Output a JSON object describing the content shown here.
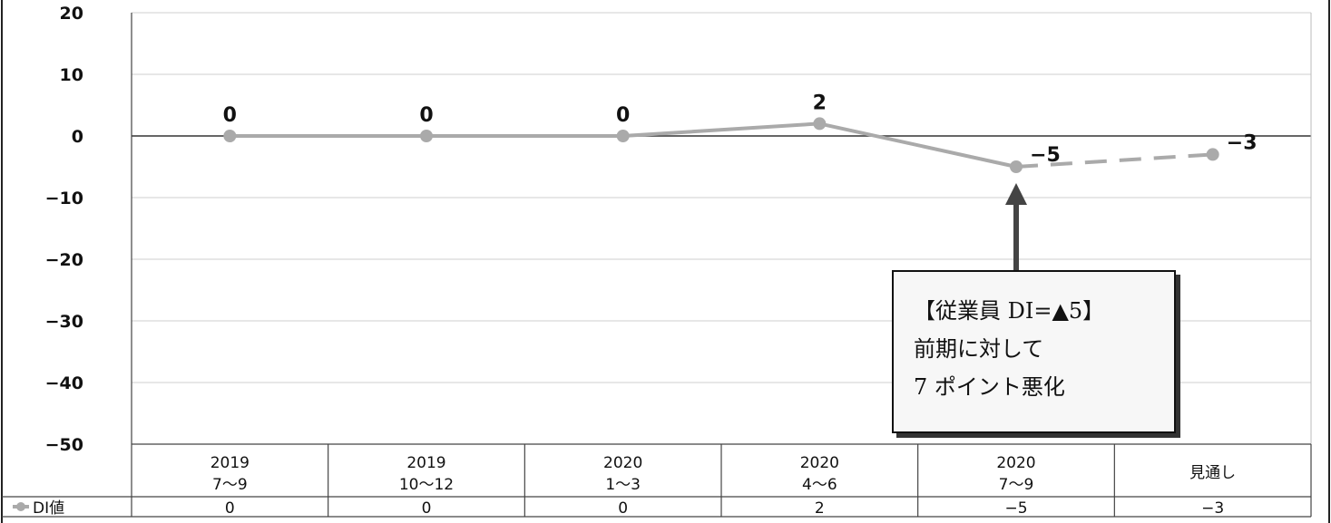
{
  "chart_data": {
    "type": "line",
    "categories": [
      {
        "line1": "2019",
        "line2": "7〜9"
      },
      {
        "line1": "2019",
        "line2": "10〜12"
      },
      {
        "line1": "2020",
        "line2": "1〜3"
      },
      {
        "line1": "2020",
        "line2": "4〜6"
      },
      {
        "line1": "2020",
        "line2": "7〜9"
      },
      {
        "line1": "見通し",
        "line2": ""
      }
    ],
    "series": [
      {
        "name": "DI値",
        "values": [
          0,
          0,
          0,
          2,
          -5,
          -3
        ],
        "data_labels": [
          "0",
          "0",
          "0",
          "2",
          "−5",
          "−3"
        ],
        "color": "#aaaaaa",
        "last_segment_dashed": true
      }
    ],
    "y_ticks": [
      "20",
      "10",
      "0",
      "−10",
      "−20",
      "−30",
      "−40",
      "−50"
    ],
    "ylim": [
      -50,
      20
    ],
    "grid": true,
    "data_table": {
      "row_label": "DI値",
      "values": [
        "0",
        "0",
        "0",
        "2",
        "−5",
        "−3"
      ]
    },
    "annotation": {
      "lines": [
        "【従業員 DI=▲5】",
        "前期に対して",
        "7 ポイント悪化"
      ],
      "points_to_index": 4
    }
  }
}
